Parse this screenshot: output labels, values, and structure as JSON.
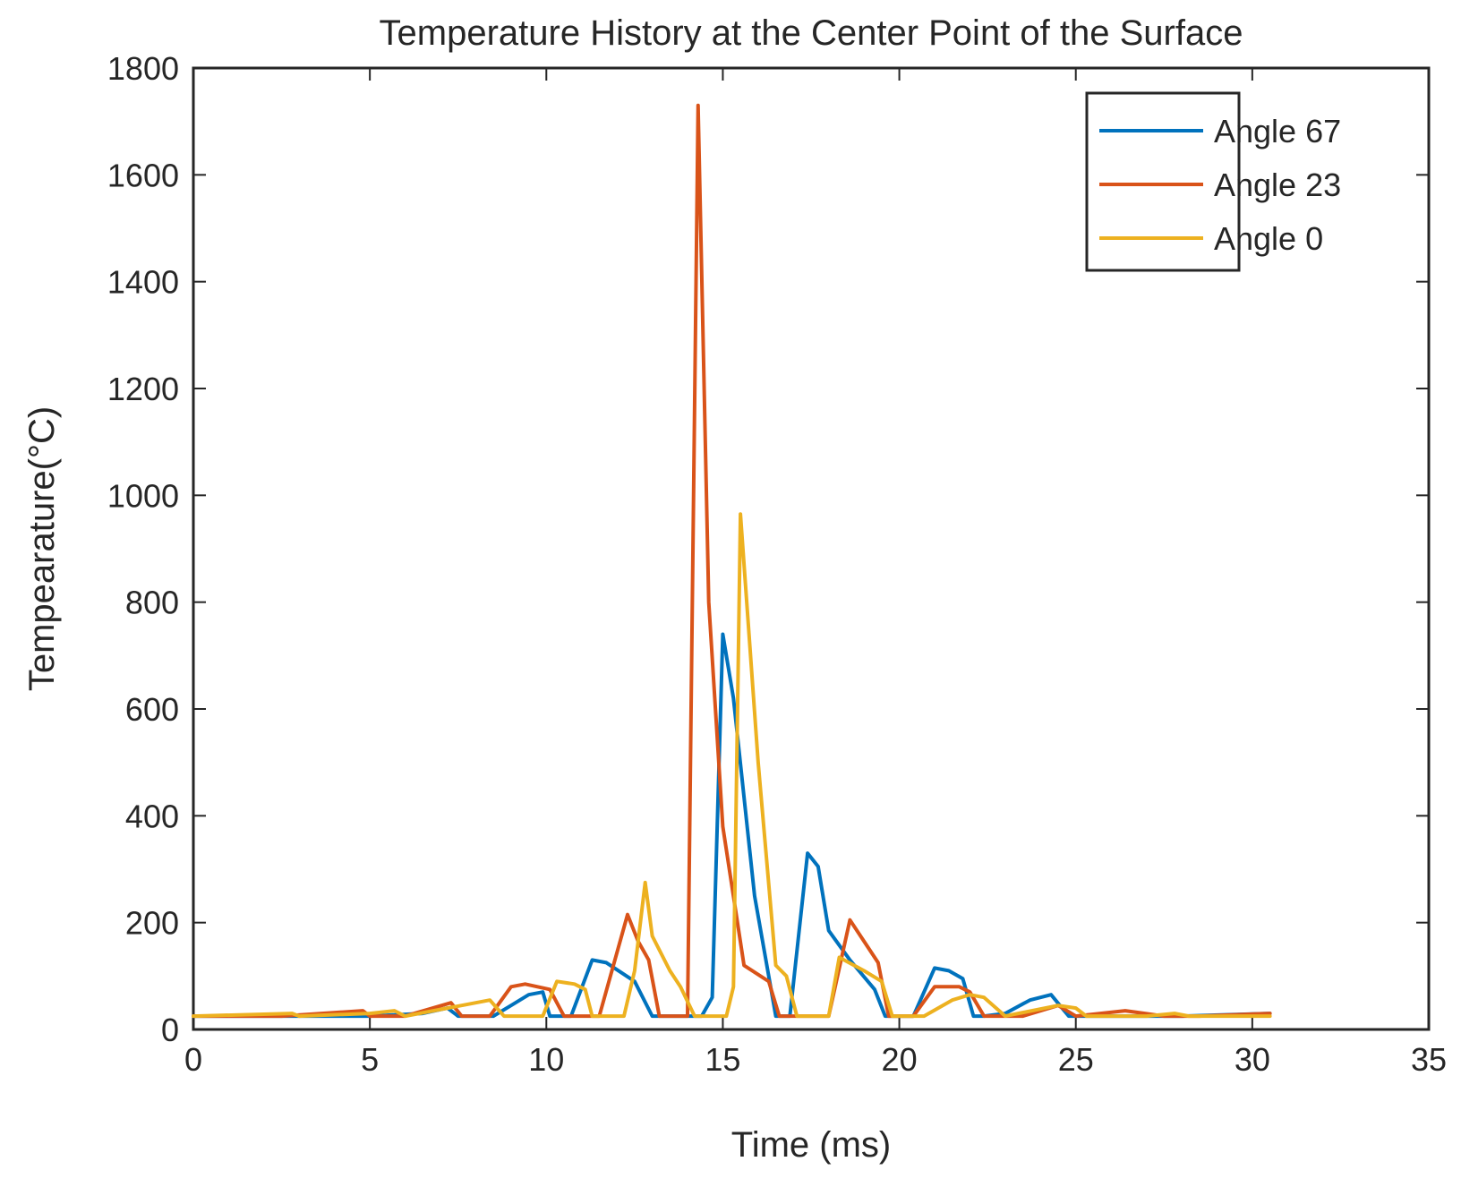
{
  "chart_data": {
    "type": "line",
    "title": "Temperature History at the Center Point of the Surface",
    "xlabel": "Time (ms)",
    "ylabel": "Tempearature(°C)",
    "xlim": [
      0,
      35
    ],
    "ylim": [
      0,
      1800
    ],
    "xticks": [
      0,
      5,
      10,
      15,
      20,
      25,
      30,
      35
    ],
    "yticks": [
      0,
      200,
      400,
      600,
      800,
      1000,
      1200,
      1400,
      1600,
      1800
    ],
    "grid": false,
    "legend_position": "top-right",
    "series": [
      {
        "name": "Angle 67",
        "color": "#0072BD",
        "x": [
          0,
          2.5,
          5,
          6.5,
          7.2,
          7.5,
          8.5,
          9.0,
          9.5,
          9.9,
          10.1,
          10.7,
          11.3,
          11.7,
          12.5,
          13.0,
          13.9,
          14.4,
          14.7,
          15.0,
          15.3,
          15.9,
          16.5,
          16.9,
          17.4,
          17.7,
          18.0,
          18.6,
          19.3,
          19.6,
          20.4,
          21.0,
          21.4,
          21.8,
          22.1,
          22.4,
          23.0,
          23.7,
          24.3,
          24.8,
          26.0,
          28.0,
          30.5
        ],
        "y": [
          25,
          25,
          25,
          30,
          40,
          25,
          25,
          45,
          65,
          70,
          25,
          25,
          130,
          125,
          90,
          25,
          25,
          25,
          60,
          740,
          620,
          250,
          25,
          25,
          330,
          305,
          185,
          130,
          75,
          25,
          25,
          115,
          110,
          95,
          25,
          25,
          30,
          55,
          65,
          25,
          25,
          25,
          30
        ]
      },
      {
        "name": "Angle 23",
        "color": "#D95319",
        "x": [
          0,
          2.5,
          4.8,
          5.0,
          6.0,
          7.3,
          7.6,
          8.4,
          9.0,
          9.4,
          10.1,
          10.5,
          11.5,
          12.3,
          12.6,
          12.9,
          13.2,
          14.0,
          14.3,
          14.6,
          15.0,
          15.6,
          16.3,
          16.6,
          17.0,
          18.0,
          18.6,
          19.1,
          19.4,
          19.7,
          20.4,
          21.0,
          21.7,
          22.0,
          22.4,
          23.5,
          24.5,
          25.0,
          26.4,
          27.5,
          28.5,
          30.5
        ],
        "y": [
          25,
          25,
          35,
          25,
          25,
          50,
          25,
          25,
          80,
          85,
          75,
          25,
          25,
          215,
          165,
          130,
          25,
          25,
          1730,
          800,
          380,
          120,
          90,
          25,
          25,
          25,
          205,
          155,
          125,
          25,
          25,
          80,
          80,
          70,
          25,
          25,
          45,
          25,
          35,
          25,
          25,
          30
        ]
      },
      {
        "name": "Angle 0",
        "color": "#EDB120",
        "x": [
          0,
          2.8,
          3.0,
          5.0,
          5.7,
          6.0,
          7.6,
          8.4,
          8.8,
          9.9,
          10.3,
          10.8,
          11.1,
          11.3,
          12.2,
          12.5,
          12.8,
          13.0,
          13.5,
          13.8,
          14.2,
          14.6,
          14.9,
          15.1,
          15.3,
          15.5,
          16.0,
          16.5,
          16.8,
          17.1,
          18.0,
          18.3,
          19.0,
          19.5,
          19.8,
          20.7,
          21.5,
          22.0,
          22.4,
          23.0,
          24.5,
          25.0,
          25.3,
          27.0,
          27.8,
          28.2,
          30.5
        ],
        "y": [
          25,
          30,
          25,
          30,
          35,
          25,
          45,
          55,
          25,
          25,
          90,
          85,
          75,
          25,
          25,
          110,
          275,
          175,
          110,
          80,
          25,
          25,
          25,
          25,
          80,
          965,
          500,
          120,
          100,
          25,
          25,
          135,
          110,
          90,
          25,
          25,
          55,
          65,
          60,
          25,
          45,
          40,
          25,
          25,
          30,
          25,
          25
        ]
      }
    ]
  }
}
